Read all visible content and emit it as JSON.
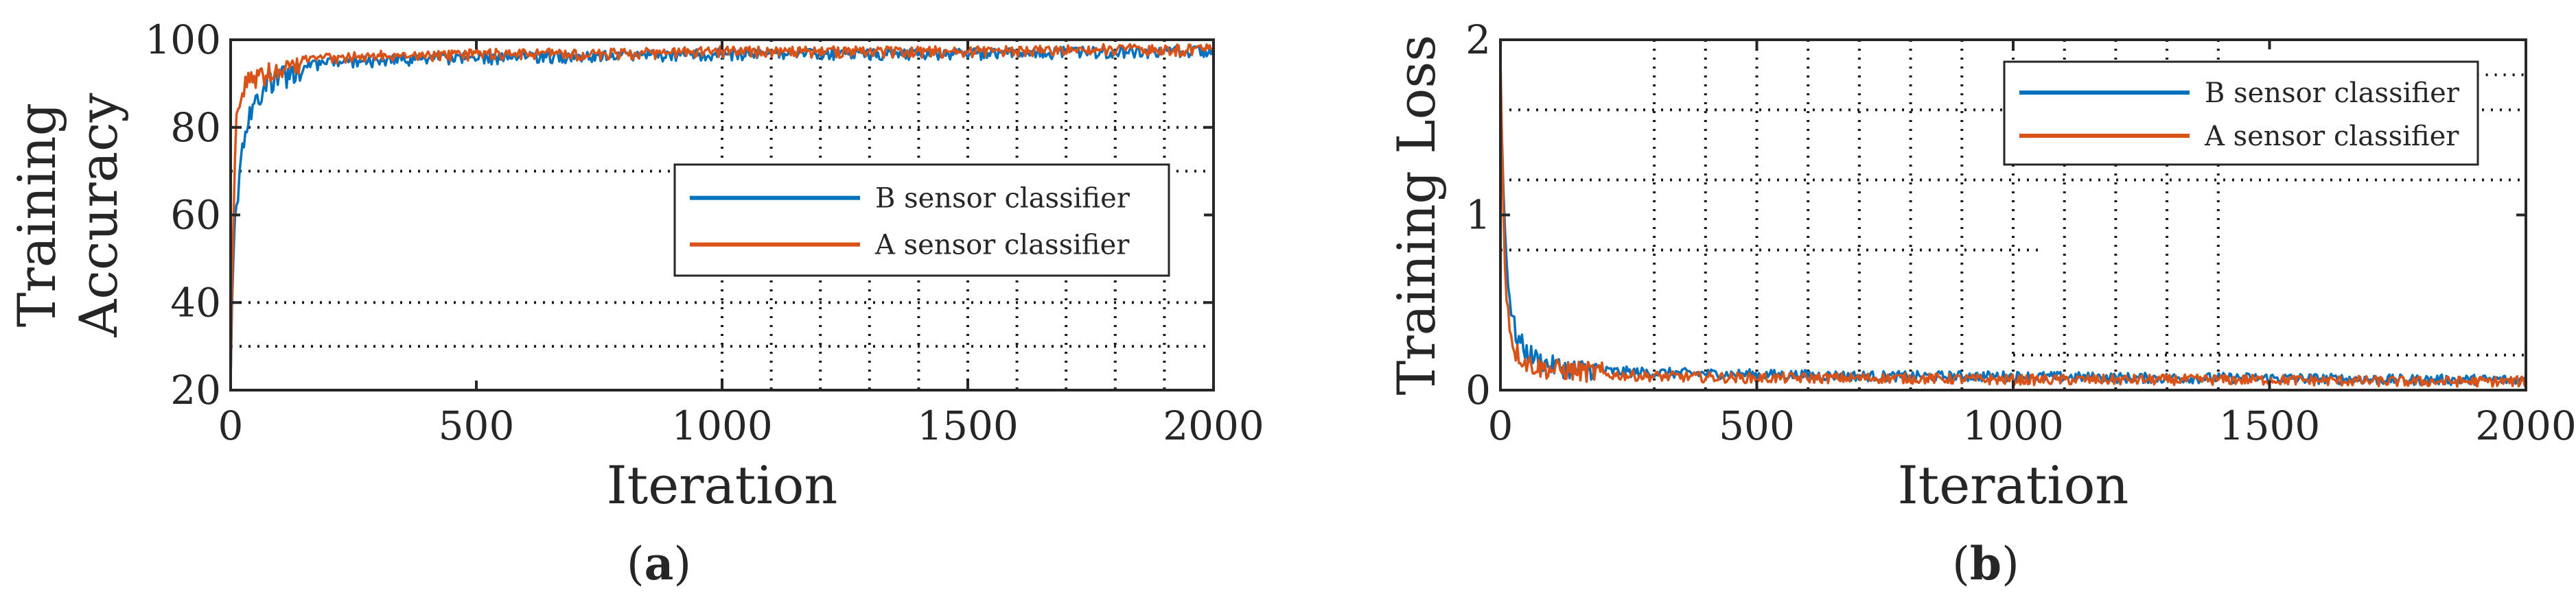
{
  "chart_data": [
    {
      "type": "line",
      "panel": "a",
      "caption_letter": "a",
      "xlabel": "Iteration",
      "ylabel": [
        "Training",
        "Accuracy"
      ],
      "xlim": [
        0,
        2000
      ],
      "ylim": [
        20,
        100
      ],
      "xticks": [
        0,
        500,
        1000,
        1500,
        2000
      ],
      "yticks": [
        20,
        40,
        60,
        80,
        100
      ],
      "legend": "center-right",
      "series": [
        {
          "name": "B sensor classifier",
          "color": "#0072BD",
          "x": [
            0,
            5,
            10,
            20,
            30,
            50,
            75,
            100,
            150,
            200,
            300,
            400,
            500,
            750,
            1000,
            1250,
            1500,
            1750,
            2000
          ],
          "y": [
            22,
            52,
            62,
            75,
            82,
            88,
            92,
            94,
            95,
            96,
            96.5,
            97,
            97,
            97.5,
            98,
            98,
            98,
            98.5,
            98.5
          ]
        },
        {
          "name": "A sensor classifier",
          "color": "#D95319",
          "x": [
            0,
            5,
            10,
            20,
            30,
            50,
            75,
            100,
            150,
            200,
            300,
            400,
            500,
            750,
            1000,
            1250,
            1500,
            1750,
            2000
          ],
          "y": [
            22,
            60,
            82,
            88,
            92,
            94,
            95,
            96,
            96.5,
            97,
            97.5,
            97.5,
            98,
            98,
            98.5,
            98.5,
            98.5,
            99,
            99
          ]
        }
      ]
    },
    {
      "type": "line",
      "panel": "b",
      "caption_letter": "b",
      "xlabel": "Iteration",
      "ylabel": [
        "Training Loss"
      ],
      "xlim": [
        0,
        2000
      ],
      "ylim": [
        0,
        2
      ],
      "xticks": [
        0,
        500,
        1000,
        1500,
        2000
      ],
      "yticks": [
        0,
        1,
        2
      ],
      "legend": "top-right",
      "series": [
        {
          "name": "B sensor classifier",
          "color": "#0072BD",
          "x": [
            0,
            5,
            10,
            20,
            30,
            50,
            75,
            100,
            150,
            200,
            300,
            500,
            750,
            1000,
            1250,
            1500,
            1750,
            2000
          ],
          "y": [
            1.8,
            1.2,
            0.8,
            0.45,
            0.3,
            0.2,
            0.15,
            0.12,
            0.1,
            0.1,
            0.09,
            0.08,
            0.07,
            0.07,
            0.06,
            0.06,
            0.05,
            0.05
          ]
        },
        {
          "name": "A sensor classifier",
          "color": "#D95319",
          "x": [
            0,
            5,
            10,
            20,
            30,
            50,
            75,
            100,
            150,
            200,
            300,
            500,
            750,
            1000,
            1250,
            1500,
            1750,
            2000
          ],
          "y": [
            1.9,
            1.1,
            0.6,
            0.3,
            0.2,
            0.14,
            0.11,
            0.1,
            0.09,
            0.08,
            0.07,
            0.06,
            0.06,
            0.05,
            0.05,
            0.05,
            0.04,
            0.04
          ]
        }
      ]
    }
  ]
}
